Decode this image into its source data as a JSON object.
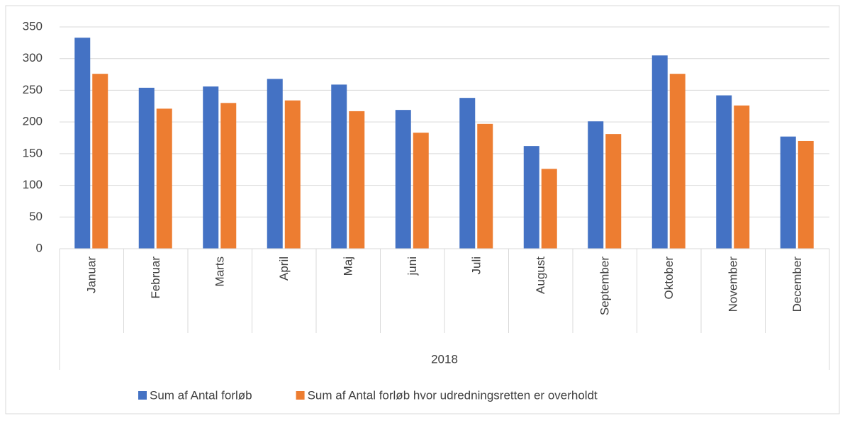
{
  "chart_data": {
    "type": "bar",
    "categories": [
      "Januar",
      "Februar",
      "Marts",
      "April",
      "Maj",
      "juni",
      "Juli",
      "August",
      "September",
      "Oktober",
      "November",
      "December"
    ],
    "group_label": "2018",
    "series": [
      {
        "name": "Sum af Antal forløb",
        "color": "#4472c4",
        "values": [
          333,
          254,
          256,
          268,
          259,
          219,
          238,
          162,
          201,
          305,
          242,
          177
        ]
      },
      {
        "name": "Sum af Antal forløb hvor udredningsretten er overholdt",
        "color": "#ed7d31",
        "values": [
          276,
          221,
          230,
          234,
          217,
          183,
          197,
          126,
          181,
          276,
          226,
          170
        ]
      }
    ],
    "ylim": [
      0,
      350
    ],
    "yticks": [
      0,
      50,
      100,
      150,
      200,
      250,
      300,
      350
    ],
    "grid": true,
    "legend": "bottom"
  }
}
